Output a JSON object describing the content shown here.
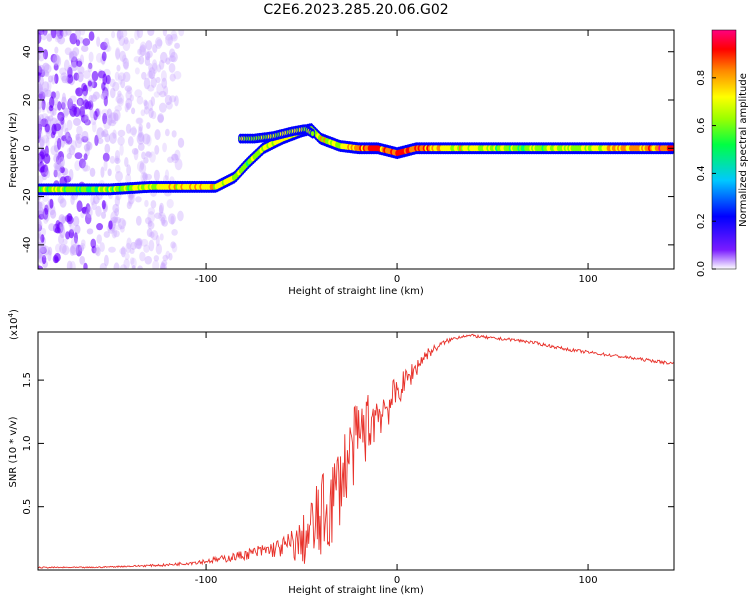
{
  "chart_data": [
    {
      "type": "heatmap",
      "title": "C2E6.2023.285.20.06.G02",
      "xlabel": "Height of straight line (km)",
      "ylabel": "Frequency (Hz)",
      "xlim": [
        -188,
        145
      ],
      "ylim": [
        -50,
        49
      ],
      "x_ticks": [
        -100,
        0,
        100
      ],
      "x_tick_labels": [
        "-100",
        "0",
        "100"
      ],
      "y_ticks": [
        -40,
        -20,
        0,
        20,
        40
      ],
      "y_tick_labels": [
        "-40",
        "-20",
        "0",
        "20",
        "40"
      ],
      "colorbar": {
        "label": "Normalized spectral amplitude",
        "range": [
          0,
          1
        ],
        "ticks": [
          0.0,
          0.2,
          0.4,
          0.6,
          0.8
        ],
        "tick_labels": [
          "0.0",
          "0.2",
          "0.4",
          "0.6",
          "0.8"
        ],
        "colormap": "rainbow",
        "colors": [
          "#ffffff",
          "#6a00ff",
          "#0000ff",
          "#00c8ff",
          "#00ff66",
          "#7fff00",
          "#ffff00",
          "#ff8800",
          "#ff0000",
          "#ff007f"
        ]
      },
      "ridge": {
        "x": [
          -188,
          -150,
          -130,
          -110,
          -95,
          -85,
          -78,
          -70,
          -60,
          -50,
          -45,
          -40,
          -30,
          -20,
          -10,
          0,
          10,
          20,
          60,
          100,
          145
        ],
        "y": [
          -17,
          -17,
          -16,
          -16,
          -16,
          -12,
          -6,
          0,
          4,
          7,
          8,
          4,
          1,
          0,
          0,
          -2,
          0,
          0,
          0,
          0,
          0
        ],
        "amplitude": [
          0.55,
          0.55,
          0.6,
          0.7,
          0.7,
          0.6,
          0.55,
          0.6,
          0.65,
          0.6,
          0.6,
          0.65,
          0.6,
          0.8,
          0.85,
          0.8,
          0.85,
          0.7,
          0.55,
          0.6,
          0.9
        ]
      },
      "upper_branch": {
        "x": [
          -82,
          -75,
          -65,
          -55,
          -48,
          -44
        ],
        "y": [
          4,
          4,
          5,
          7,
          8,
          6
        ]
      }
    },
    {
      "type": "line",
      "title": "",
      "xlabel": "Height of straight line (km)",
      "ylabel": "SNR (10 * v/v)",
      "y_multiplier": "(x10",
      "y_multiplier_exp": "4",
      "y_multiplier_close": ")",
      "xlim": [
        -188,
        145
      ],
      "ylim": [
        0,
        1.88
      ],
      "x_ticks": [
        -100,
        0,
        100
      ],
      "x_tick_labels": [
        "-100",
        "0",
        "100"
      ],
      "y_ticks": [
        0.5,
        1.0,
        1.5
      ],
      "y_tick_labels": [
        "0.5",
        "1.0",
        "1.5"
      ],
      "color": "#e8312a",
      "series": [
        {
          "x": [
            -188,
            -160,
            -140,
            -120,
            -100,
            -90,
            -80,
            -70,
            -60,
            -50,
            -45,
            -40,
            -35,
            -30,
            -25,
            -20,
            -15,
            -10,
            -5,
            0,
            5,
            10,
            15,
            20,
            25,
            30,
            35,
            40,
            50,
            60,
            70,
            80,
            90,
            100,
            110,
            120,
            130,
            145
          ],
          "values": [
            0.02,
            0.02,
            0.03,
            0.04,
            0.07,
            0.09,
            0.12,
            0.15,
            0.18,
            0.22,
            0.3,
            0.4,
            0.5,
            0.7,
            0.9,
            1.05,
            1.15,
            1.25,
            1.3,
            1.4,
            1.5,
            1.6,
            1.7,
            1.75,
            1.8,
            1.83,
            1.85,
            1.85,
            1.83,
            1.82,
            1.8,
            1.77,
            1.74,
            1.72,
            1.7,
            1.68,
            1.66,
            1.63
          ],
          "noise": [
            0.005,
            0.005,
            0.006,
            0.01,
            0.02,
            0.03,
            0.04,
            0.06,
            0.08,
            0.18,
            0.3,
            0.35,
            0.35,
            0.35,
            0.32,
            0.3,
            0.26,
            0.22,
            0.18,
            0.12,
            0.1,
            0.08,
            0.05,
            0.03,
            0.02,
            0.015,
            0.012,
            0.012,
            0.012,
            0.012,
            0.012,
            0.012,
            0.012,
            0.012,
            0.012,
            0.012,
            0.012,
            0.012
          ]
        }
      ]
    }
  ]
}
